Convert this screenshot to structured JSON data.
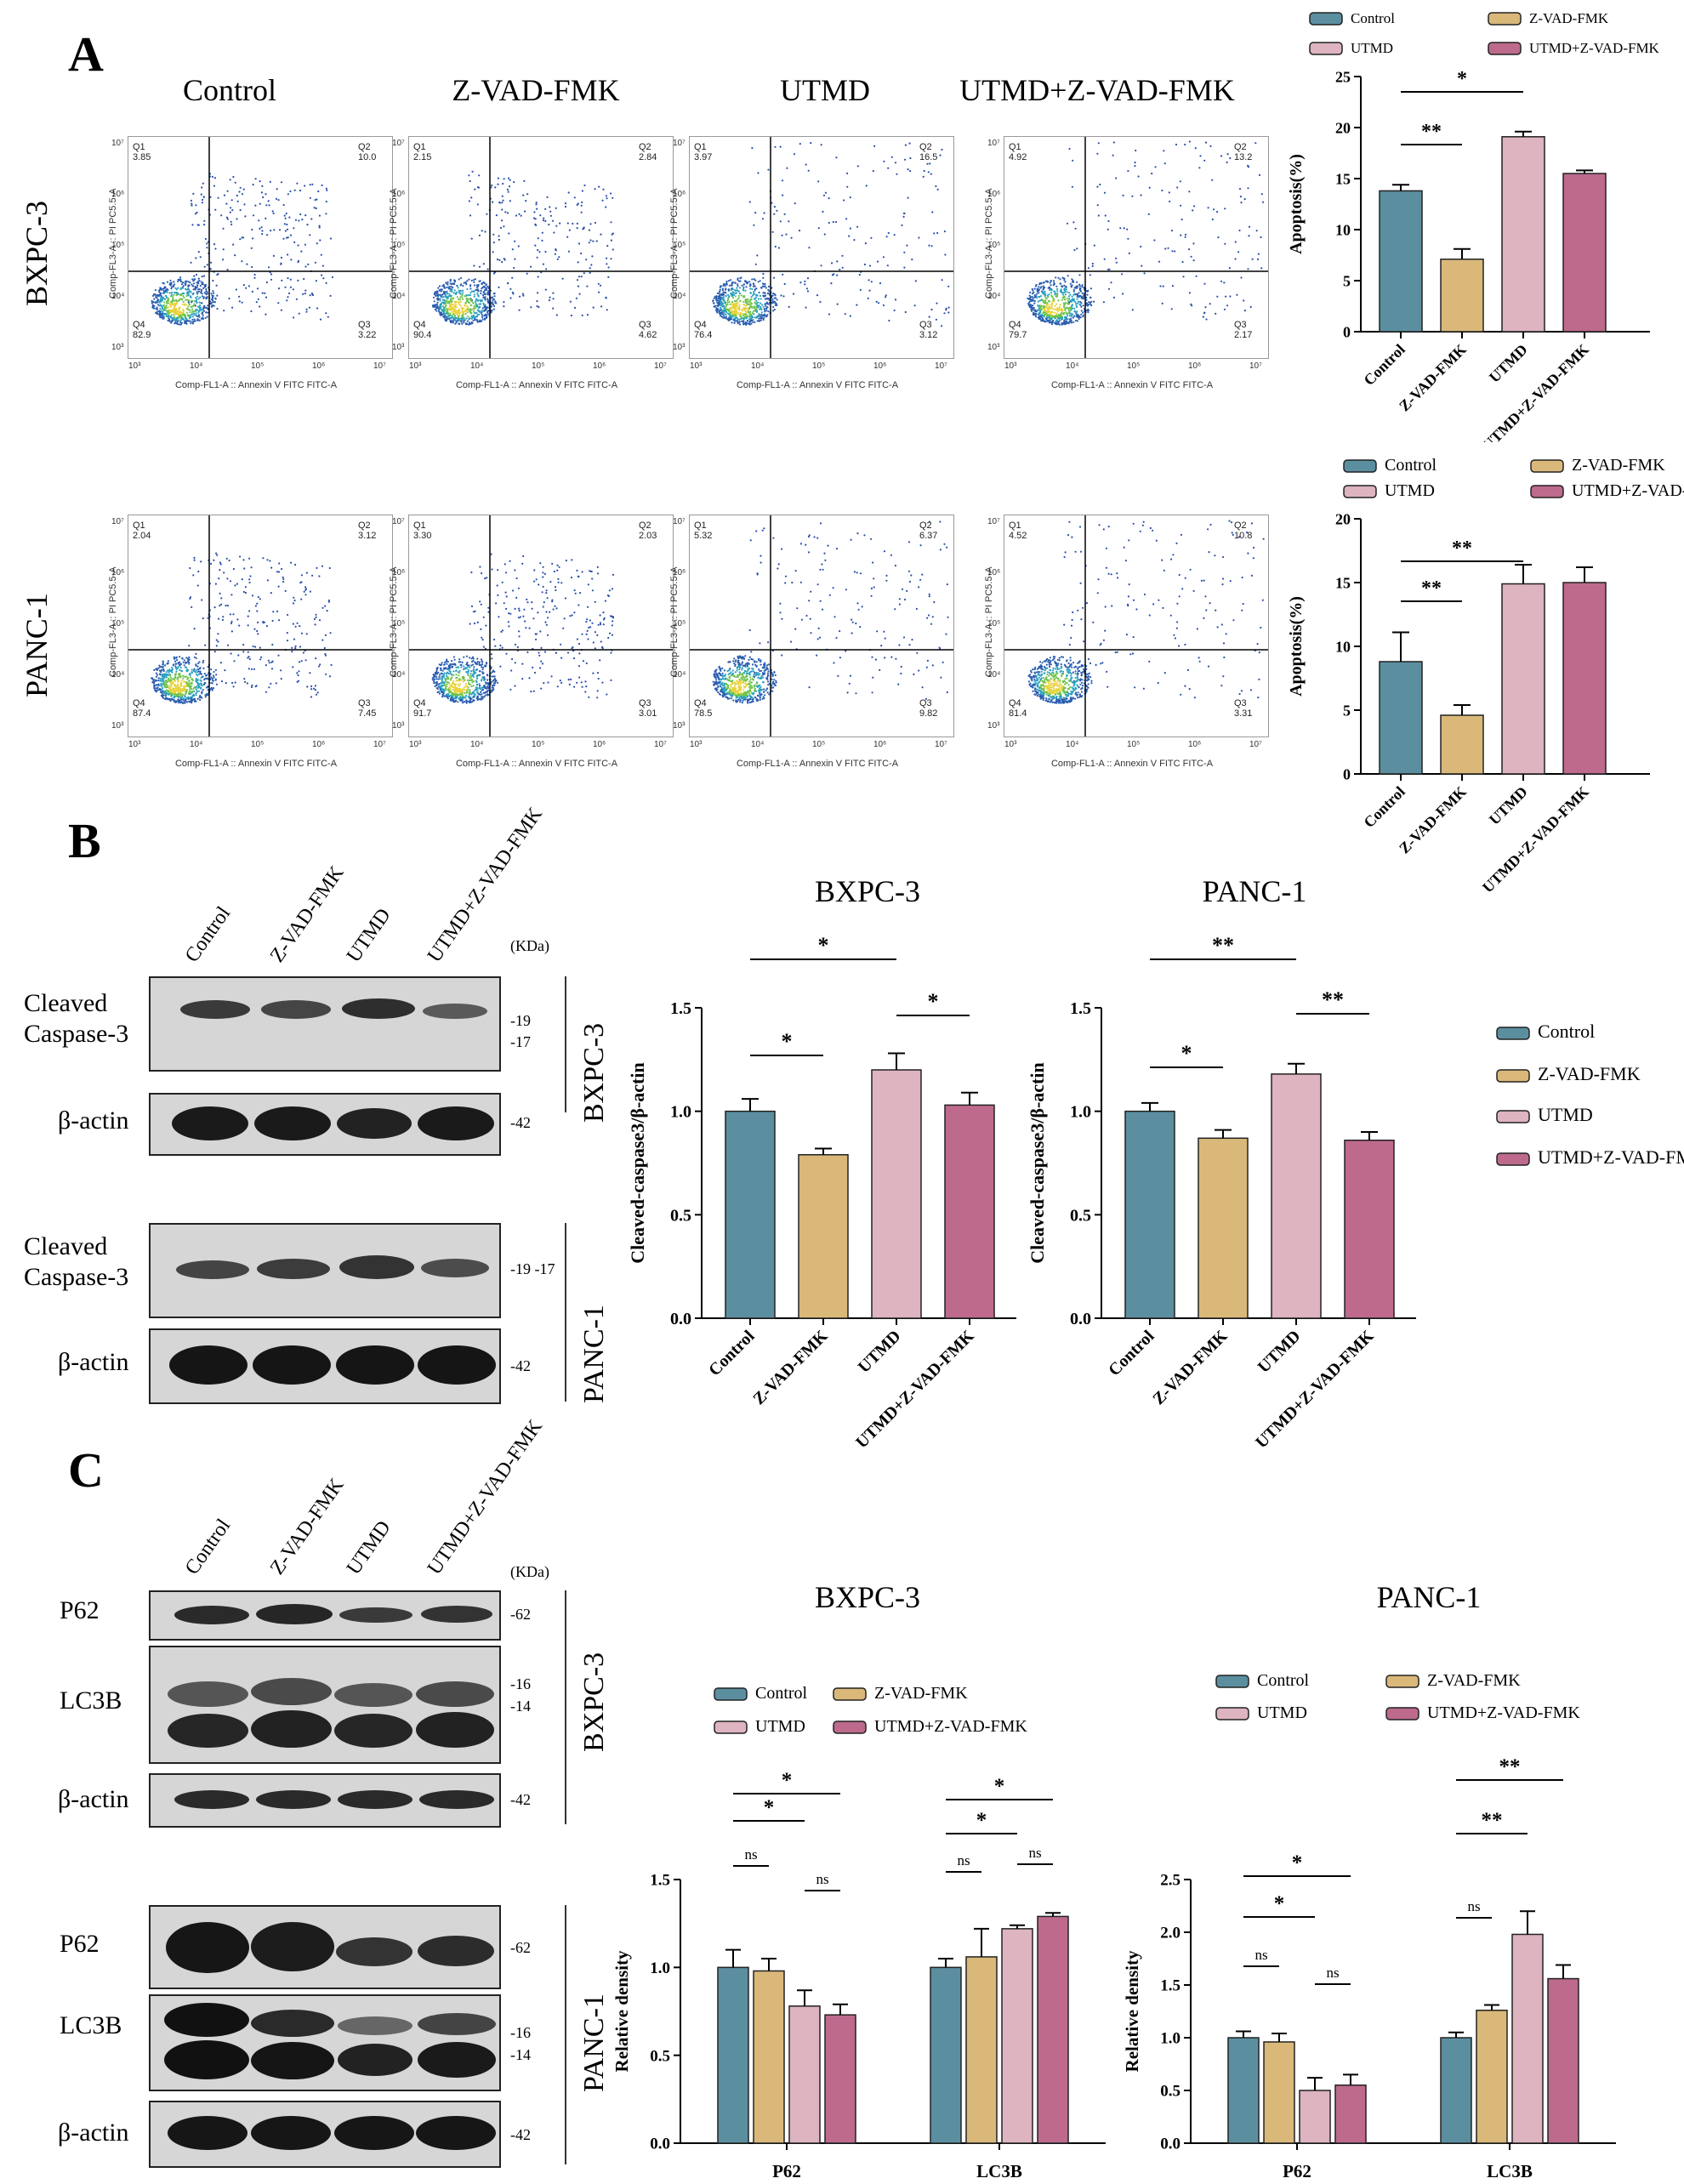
{
  "panels": {
    "a": "A",
    "b": "B",
    "c": "C"
  },
  "groups": [
    "Control",
    "Z-VAD-FMK",
    "UTMD",
    "UTMD+Z-VAD-FMK"
  ],
  "colors": {
    "control": "#5b8fa0",
    "zvad": "#d9b87a",
    "utmd": "#ddb4c0",
    "combo": "#bd6a8d"
  },
  "flow": {
    "rows": [
      "BXPC-3",
      "PANC-1"
    ],
    "xlabel": "Comp-FL1-A :: Annexin V FITC FITC-A",
    "ylabel": "Comp-FL3-A :: PI PC5.5-A",
    "yticks": [
      "10⁷",
      "10⁶",
      "10⁵",
      "10⁴",
      "10³"
    ],
    "xticks": [
      "10³",
      "10⁴",
      "10⁵",
      "10⁶",
      "10⁷"
    ],
    "quadrant_labels": [
      "Q1",
      "Q2",
      "Q3",
      "Q4"
    ],
    "plots": [
      [
        {
          "q1": "3.85",
          "q2": "10.0",
          "q3": "3.22",
          "q4": "82.9"
        },
        {
          "q1": "2.15",
          "q2": "2.84",
          "q3": "4.62",
          "q4": "90.4"
        },
        {
          "q1": "3.97",
          "q2": "16.5",
          "q3": "3.12",
          "q4": "76.4"
        },
        {
          "q1": "4.92",
          "q2": "13.2",
          "q3": "2.17",
          "q4": "79.7"
        }
      ],
      [
        {
          "q1": "2.04",
          "q2": "3.12",
          "q3": "7.45",
          "q4": "87.4"
        },
        {
          "q1": "3.30",
          "q2": "2.03",
          "q3": "3.01",
          "q4": "91.7"
        },
        {
          "q1": "5.32",
          "q2": "6.37",
          "q3": "9.82",
          "q4": "78.5"
        },
        {
          "q1": "4.52",
          "q2": "10.8",
          "q3": "3.31",
          "q4": "81.4"
        }
      ]
    ]
  },
  "blots_b": {
    "kda": "(KDa)",
    "bxpc_label": "BXPC-3",
    "panc_label": "PANC-1",
    "row_labels": {
      "cc3_line1": "Cleaved",
      "cc3_line2": "Caspase-3",
      "actin": "β-actin"
    },
    "markers": {
      "cc3_bx_a": "-19",
      "cc3_bx_b": "-17",
      "actin": "-42",
      "cc3_pa": "-19 -17"
    }
  },
  "blots_c": {
    "kda": "(KDa)",
    "bxpc_label": "BXPC-3",
    "panc_label": "PANC-1",
    "row_labels": {
      "p62": "P62",
      "lc3b": "LC3B",
      "actin": "β-actin"
    },
    "markers": {
      "p62": "-62",
      "lc3_a": "-16",
      "lc3_b": "-14",
      "actin": "-42"
    }
  },
  "chart_data": [
    {
      "id": "a-bxpc3",
      "type": "bar",
      "categories": [
        "Control",
        "Z-VAD-FMK",
        "UTMD",
        "UTMD+Z-VAD-FMK"
      ],
      "values": [
        13.8,
        7.1,
        19.1,
        15.5
      ],
      "errors": [
        0.6,
        1.0,
        0.5,
        0.3
      ],
      "ylabel": "Apoptosis(%)",
      "ylim": [
        0,
        25
      ],
      "yticks": [
        "0",
        "5",
        "10",
        "15",
        "20",
        "25"
      ],
      "legend": [
        "Control",
        "Z-VAD-FMK",
        "UTMD",
        "UTMD+Z-VAD-FMK"
      ],
      "significance": [
        {
          "from": 0,
          "to": 1,
          "label": "**"
        },
        {
          "from": 0,
          "to": 2,
          "label": "*"
        }
      ]
    },
    {
      "id": "a-panc1",
      "type": "bar",
      "categories": [
        "Control",
        "Z-VAD-FMK",
        "UTMD",
        "UTMD+Z-VAD-FMK"
      ],
      "values": [
        8.8,
        4.6,
        14.9,
        15.0
      ],
      "errors": [
        2.3,
        0.8,
        1.5,
        1.2
      ],
      "ylabel": "Apoptosis(%)",
      "ylim": [
        0,
        20
      ],
      "yticks": [
        "0",
        "5",
        "10",
        "15",
        "20"
      ],
      "legend": [
        "Control",
        "Z-VAD-FMK",
        "UTMD",
        "UTMD+Z-VAD-FMK"
      ],
      "significance": [
        {
          "from": 0,
          "to": 1,
          "label": "**"
        },
        {
          "from": 0,
          "to": 2,
          "label": "**"
        }
      ]
    },
    {
      "id": "b-bxpc3",
      "type": "bar",
      "title": "BXPC-3",
      "categories": [
        "Control",
        "Z-VAD-FMK",
        "UTMD",
        "UTMD+Z-VAD-FMK"
      ],
      "values": [
        1.0,
        0.79,
        1.2,
        1.03
      ],
      "errors": [
        0.06,
        0.03,
        0.08,
        0.06
      ],
      "ylabel": "Cleaved-caspase3/β-actin",
      "ylim": [
        0,
        1.5
      ],
      "yticks": [
        "0.0",
        "0.5",
        "1.0",
        "1.5"
      ],
      "significance": [
        {
          "from": 0,
          "to": 1,
          "label": "*"
        },
        {
          "from": 0,
          "to": 2,
          "label": "*"
        },
        {
          "from": 2,
          "to": 3,
          "label": "*"
        }
      ]
    },
    {
      "id": "b-panc1",
      "type": "bar",
      "title": "PANC-1",
      "categories": [
        "Control",
        "Z-VAD-FMK",
        "UTMD",
        "UTMD+Z-VAD-FMK"
      ],
      "values": [
        1.0,
        0.87,
        1.18,
        0.86
      ],
      "errors": [
        0.04,
        0.04,
        0.05,
        0.04
      ],
      "ylabel": "Cleaved-caspase3/β-actin",
      "ylim": [
        0,
        1.5
      ],
      "yticks": [
        "0.0",
        "0.5",
        "1.0",
        "1.5"
      ],
      "legend": [
        "Control",
        "Z-VAD-FMK",
        "UTMD",
        "UTMD+Z-VAD-FMK"
      ],
      "significance": [
        {
          "from": 0,
          "to": 1,
          "label": "*"
        },
        {
          "from": 0,
          "to": 2,
          "label": "**"
        },
        {
          "from": 2,
          "to": 3,
          "label": "**"
        }
      ]
    },
    {
      "id": "c-bxpc3",
      "type": "bar",
      "title": "BXPC-3",
      "categories": [
        "P62",
        "LC3B"
      ],
      "series": [
        {
          "name": "Control",
          "values": [
            1.0,
            1.0
          ],
          "errors": [
            0.1,
            0.05
          ]
        },
        {
          "name": "Z-VAD-FMK",
          "values": [
            0.98,
            1.06
          ],
          "errors": [
            0.07,
            0.16
          ]
        },
        {
          "name": "UTMD",
          "values": [
            0.78,
            1.22
          ],
          "errors": [
            0.09,
            0.02
          ]
        },
        {
          "name": "UTMD+Z-VAD-FMK",
          "values": [
            0.73,
            1.29
          ],
          "errors": [
            0.06,
            0.02
          ]
        }
      ],
      "ylabel": "Relative density",
      "ylim": [
        0,
        1.5
      ],
      "yticks": [
        "0.0",
        "0.5",
        "1.0",
        "1.5"
      ],
      "significance": [
        {
          "group": 0,
          "from": 0,
          "to": 1,
          "label": "ns"
        },
        {
          "group": 0,
          "from": 0,
          "to": 2,
          "label": "*"
        },
        {
          "group": 0,
          "from": 0,
          "to": 3,
          "label": "*"
        },
        {
          "group": 0,
          "from": 2,
          "to": 3,
          "label": "ns"
        },
        {
          "group": 1,
          "from": 0,
          "to": 1,
          "label": "ns"
        },
        {
          "group": 1,
          "from": 0,
          "to": 2,
          "label": "*"
        },
        {
          "group": 1,
          "from": 0,
          "to": 3,
          "label": "*"
        },
        {
          "group": 1,
          "from": 2,
          "to": 3,
          "label": "ns"
        }
      ]
    },
    {
      "id": "c-panc1",
      "type": "bar",
      "title": "PANC-1",
      "categories": [
        "P62",
        "LC3B"
      ],
      "series": [
        {
          "name": "Control",
          "values": [
            1.0,
            1.0
          ],
          "errors": [
            0.06,
            0.05
          ]
        },
        {
          "name": "Z-VAD-FMK",
          "values": [
            0.96,
            1.26
          ],
          "errors": [
            0.08,
            0.05
          ]
        },
        {
          "name": "UTMD",
          "values": [
            0.5,
            1.98
          ],
          "errors": [
            0.12,
            0.22
          ]
        },
        {
          "name": "UTMD+Z-VAD-FMK",
          "values": [
            0.55,
            1.56
          ],
          "errors": [
            0.1,
            0.13
          ]
        }
      ],
      "ylabel": "Relative density",
      "ylim": [
        0,
        2.5
      ],
      "yticks": [
        "0.0",
        "0.5",
        "1.0",
        "1.5",
        "2.0",
        "2.5"
      ],
      "significance": [
        {
          "group": 0,
          "from": 0,
          "to": 1,
          "label": "ns"
        },
        {
          "group": 0,
          "from": 0,
          "to": 2,
          "label": "*"
        },
        {
          "group": 0,
          "from": 0,
          "to": 3,
          "label": "*"
        },
        {
          "group": 0,
          "from": 2,
          "to": 3,
          "label": "ns"
        },
        {
          "group": 1,
          "from": 0,
          "to": 1,
          "label": "ns"
        },
        {
          "group": 1,
          "from": 0,
          "to": 2,
          "label": "**"
        },
        {
          "group": 1,
          "from": 0,
          "to": 3,
          "label": "**"
        }
      ]
    }
  ]
}
